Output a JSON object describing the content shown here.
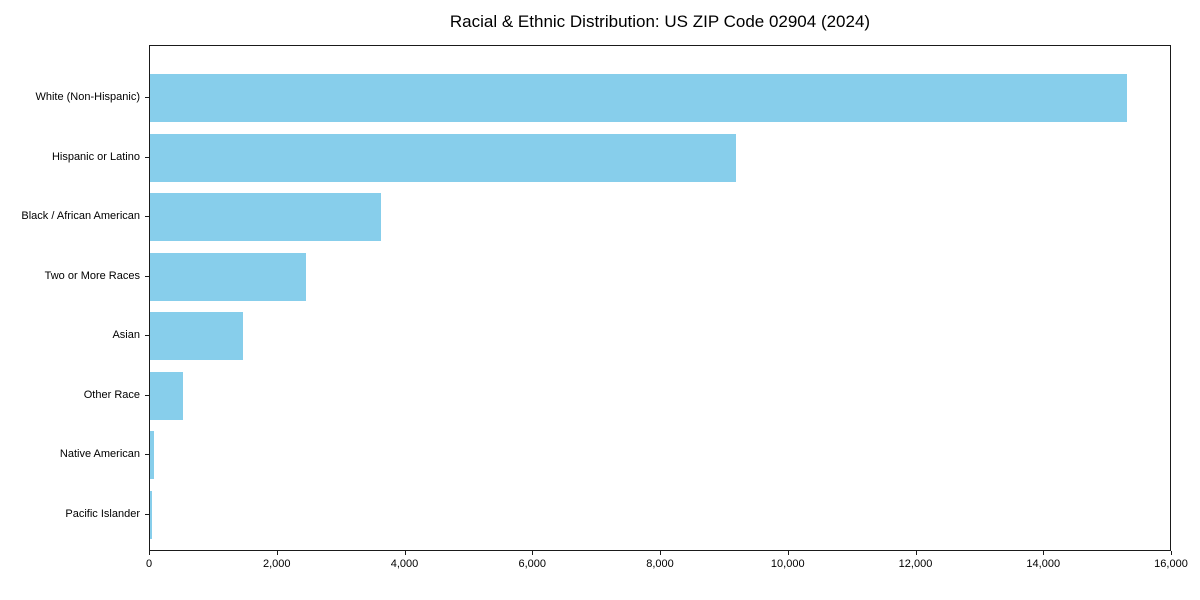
{
  "chart_data": {
    "type": "bar",
    "orientation": "horizontal",
    "title": "Racial & Ethnic Distribution: US ZIP Code 02904 (2024)",
    "categories": [
      "White (Non-Hispanic)",
      "Hispanic or Latino",
      "Black / African American",
      "Two or More Races",
      "Asian",
      "Other Race",
      "Native American",
      "Pacific Islander"
    ],
    "values": [
      15300,
      9170,
      3610,
      2440,
      1450,
      510,
      60,
      25
    ],
    "xlabel": "",
    "ylabel": "",
    "xlim": [
      0,
      16000
    ],
    "x_ticks": [
      0,
      2000,
      4000,
      6000,
      8000,
      10000,
      12000,
      14000,
      16000
    ],
    "x_tick_labels": [
      "0",
      "2,000",
      "4,000",
      "6,000",
      "8,000",
      "10,000",
      "12,000",
      "14,000",
      "16,000"
    ],
    "bar_color": "#87CEEB",
    "grid": false,
    "legend": null,
    "background_color": "#ffffff"
  }
}
